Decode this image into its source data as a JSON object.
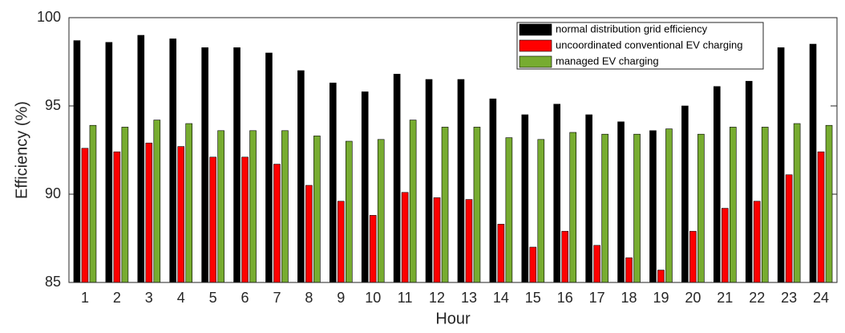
{
  "chart_data": {
    "type": "bar",
    "x_label": "Hour",
    "y_label": "Efficiency (%)",
    "categories": [
      "1",
      "2",
      "3",
      "4",
      "5",
      "6",
      "7",
      "8",
      "9",
      "10",
      "11",
      "12",
      "13",
      "14",
      "15",
      "16",
      "17",
      "18",
      "19",
      "20",
      "21",
      "22",
      "23",
      "24"
    ],
    "series": [
      {
        "name": "normal distribution grid efficiency",
        "color": "#000000",
        "values": [
          98.7,
          98.6,
          99.0,
          98.8,
          98.3,
          98.3,
          98.0,
          97.0,
          96.3,
          95.8,
          96.8,
          96.5,
          96.5,
          95.4,
          94.5,
          95.1,
          94.5,
          94.1,
          93.6,
          95.0,
          96.1,
          96.4,
          98.3,
          98.5
        ]
      },
      {
        "name": "uncoordinated conventional EV charging",
        "color": "#ff0000",
        "values": [
          92.6,
          92.4,
          92.9,
          92.7,
          92.1,
          92.1,
          91.7,
          90.5,
          89.6,
          88.8,
          90.1,
          89.8,
          89.7,
          88.3,
          87.0,
          87.9,
          87.1,
          86.4,
          85.7,
          87.9,
          89.2,
          89.6,
          91.1,
          92.4
        ]
      },
      {
        "name": "managed EV charging",
        "color": "#77ac30",
        "values": [
          93.9,
          93.8,
          94.2,
          94.0,
          93.6,
          93.6,
          93.6,
          93.3,
          93.0,
          93.1,
          94.2,
          93.8,
          93.8,
          93.2,
          93.1,
          93.5,
          93.4,
          93.4,
          93.7,
          93.4,
          93.8,
          93.8,
          94.0,
          93.9
        ]
      }
    ],
    "ylim": [
      85,
      100
    ],
    "yticks": [
      85,
      90,
      95,
      100
    ],
    "legend": "upper right"
  }
}
